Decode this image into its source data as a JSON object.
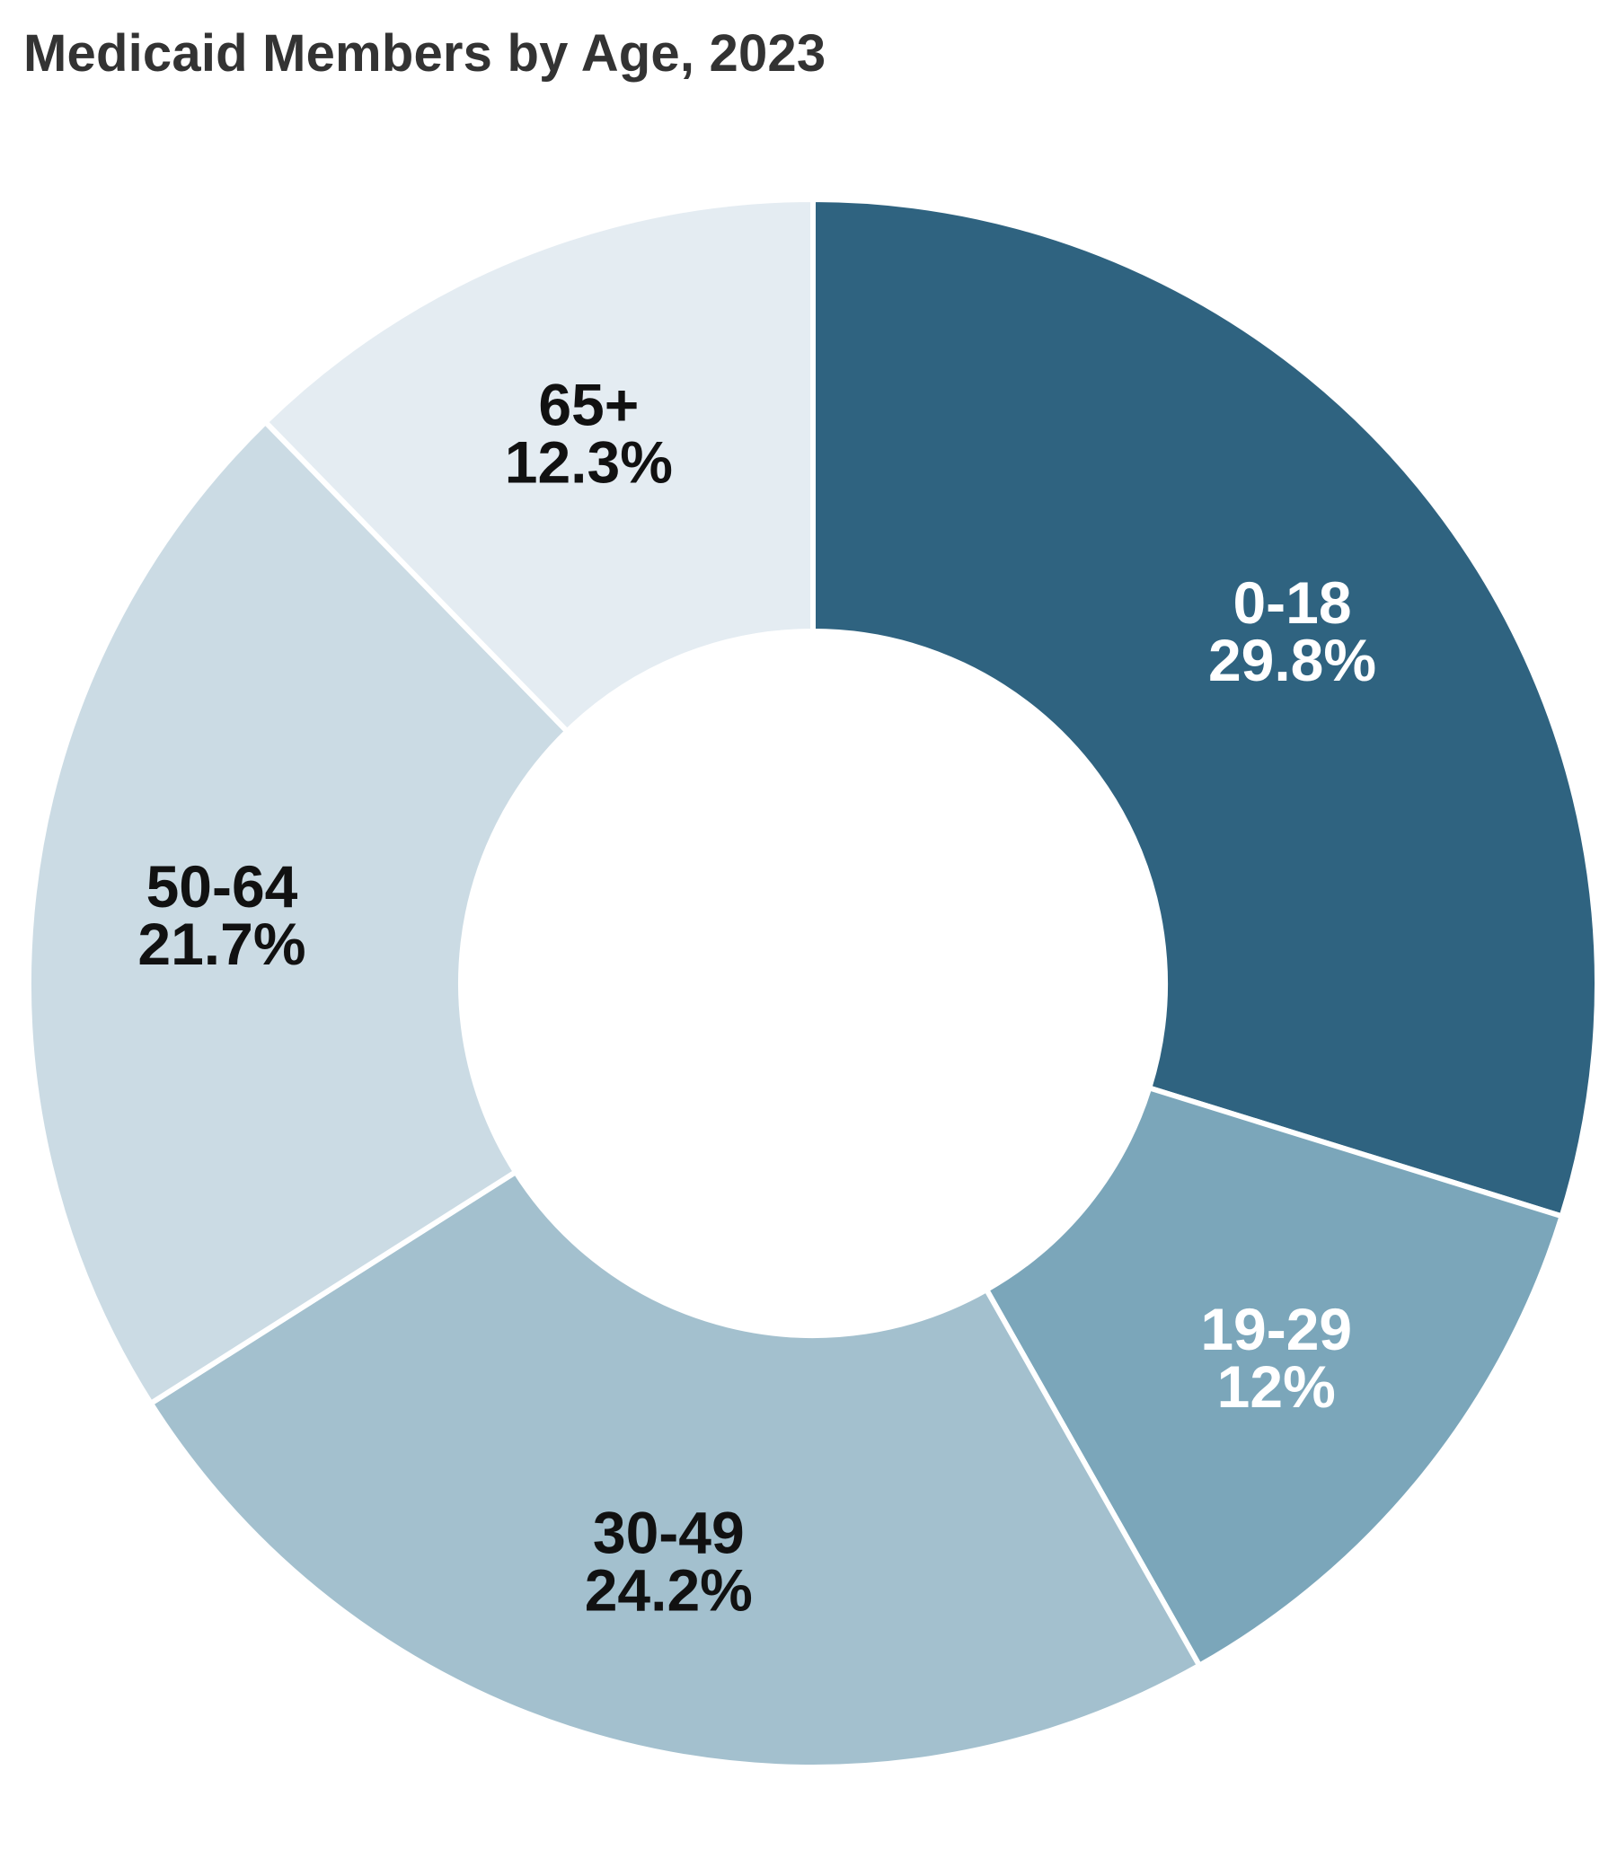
{
  "title": "Medicaid Members by Age, 2023",
  "chart_data": {
    "type": "pie",
    "variant": "donut",
    "categories": [
      "0-18",
      "19-29",
      "30-49",
      "50-64",
      "65+"
    ],
    "values": [
      29.8,
      12,
      24.2,
      21.7,
      12.3
    ],
    "value_labels": [
      "29.8%",
      "12%",
      "24.2%",
      "21.7%",
      "12.3%"
    ],
    "colors": [
      "#2f6380",
      "#7ba6ba",
      "#a3c0ce",
      "#cbdbe4",
      "#e4ecf2"
    ],
    "label_colors": [
      "#ffffff",
      "#ffffff",
      "#111111",
      "#111111",
      "#111111"
    ],
    "start_angle": "12 o'clock",
    "direction": "clockwise"
  }
}
